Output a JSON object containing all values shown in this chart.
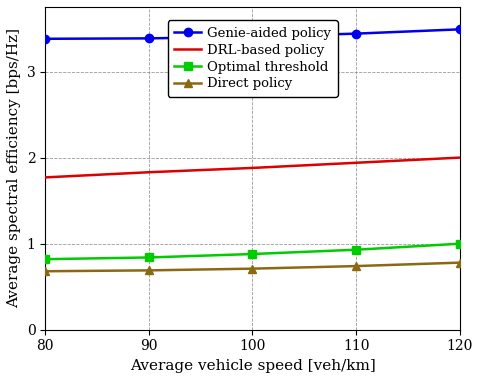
{
  "x": [
    80,
    90,
    100,
    110,
    120
  ],
  "genie_aided": [
    3.38,
    3.385,
    3.405,
    3.44,
    3.49
  ],
  "drl_based": [
    1.77,
    1.83,
    1.88,
    1.94,
    2.0
  ],
  "optimal_threshold": [
    0.82,
    0.84,
    0.88,
    0.93,
    1.0
  ],
  "direct_policy": [
    0.68,
    0.69,
    0.71,
    0.74,
    0.78
  ],
  "genie_color": "#0000ee",
  "drl_color": "#dd0000",
  "optimal_color": "#00cc00",
  "direct_color": "#8B6914",
  "xlabel": "Average vehicle speed [veh/km]",
  "ylabel": "Average spectral efficiency [bps/Hz]",
  "xlim": [
    80,
    120
  ],
  "ylim": [
    0,
    3.75
  ],
  "yticks": [
    0,
    1,
    2,
    3
  ],
  "xticks": [
    80,
    90,
    100,
    110,
    120
  ],
  "legend_labels": [
    "Genie-aided policy",
    "DRL-based policy",
    "Optimal threshold",
    "Direct policy"
  ],
  "linewidth": 1.8,
  "markersize": 6
}
